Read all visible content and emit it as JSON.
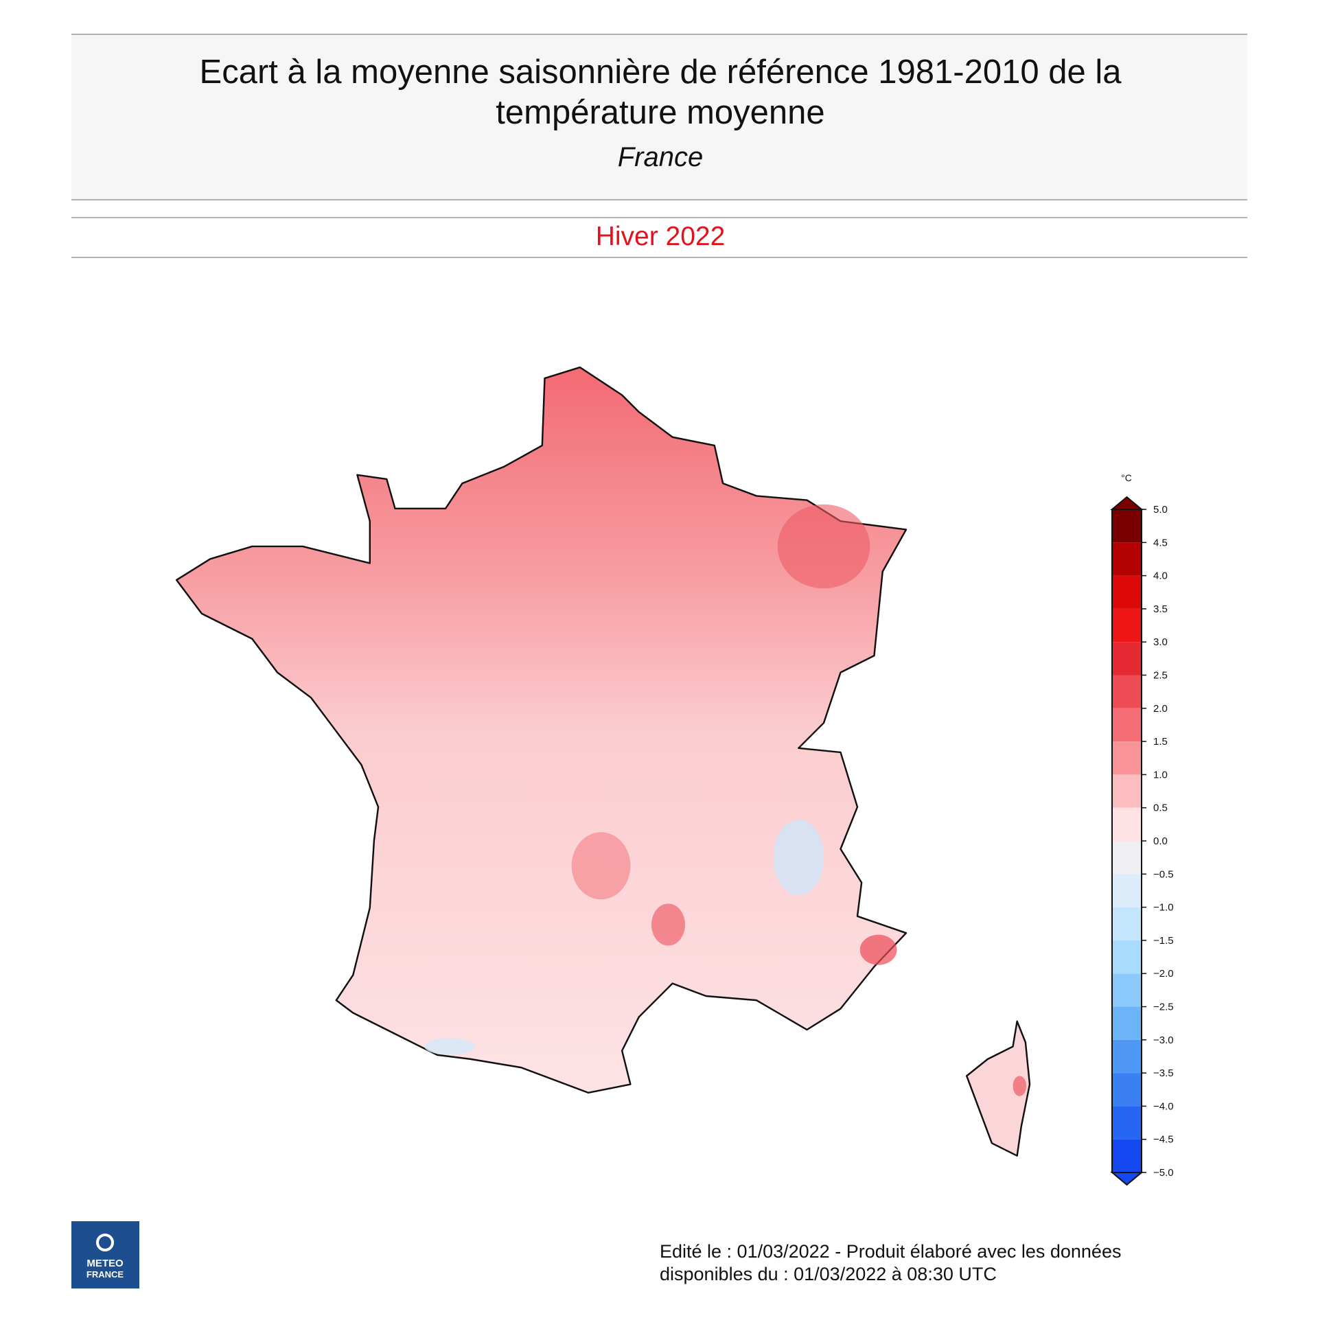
{
  "header": {
    "title_line1": "Ecart à la moyenne saisonnière de référence 1981-2010 de la",
    "title_line2": "température moyenne",
    "region": "France",
    "period": "Hiver 2022"
  },
  "legend": {
    "unit": "°C",
    "ticks": [
      {
        "value": 5,
        "label": "5.0"
      },
      {
        "value": 4.5,
        "label": "4.5"
      },
      {
        "value": 4,
        "label": "4.0"
      },
      {
        "value": 3.5,
        "label": "3.5"
      },
      {
        "value": 3,
        "label": "3.0"
      },
      {
        "value": 2.5,
        "label": "2.5"
      },
      {
        "value": 2,
        "label": "2.0"
      },
      {
        "value": 1.5,
        "label": "1.5"
      },
      {
        "value": 1,
        "label": "1.0"
      },
      {
        "value": 0.5,
        "label": "0.5"
      },
      {
        "value": 0,
        "label": "0.0"
      },
      {
        "value": -0.5,
        "label": "−0.5"
      },
      {
        "value": -1,
        "label": "−1.0"
      },
      {
        "value": -1.5,
        "label": "−1.5"
      },
      {
        "value": -2,
        "label": "−2.0"
      },
      {
        "value": -2.5,
        "label": "−2.5"
      },
      {
        "value": -3,
        "label": "−3.0"
      },
      {
        "value": -3.5,
        "label": "−3.5"
      },
      {
        "value": -4,
        "label": "−4.0"
      },
      {
        "value": -4.5,
        "label": "−4.5"
      },
      {
        "value": -5,
        "label": "−5.0"
      }
    ],
    "colors": [
      "#7a0000",
      "#b30000",
      "#dd0808",
      "#ee1515",
      "#e52a33",
      "#ee4c55",
      "#f46c74",
      "#f89398",
      "#fbbdc0",
      "#fde1e3",
      "#eeeef3",
      "#dcecfb",
      "#c3e6fd",
      "#a9dcfc",
      "#8ccafb",
      "#6cb4f8",
      "#4f98f5",
      "#3a80f3",
      "#2666f2",
      "#1448f0"
    ]
  },
  "footer": {
    "line1": "Edité le : 01/03/2022 - Produit élaboré avec les données",
    "line2": "disponibles du : 01/03/2022 à 08:30 UTC"
  },
  "logo": {
    "line1": "METEO",
    "line2": "FRANCE"
  }
}
